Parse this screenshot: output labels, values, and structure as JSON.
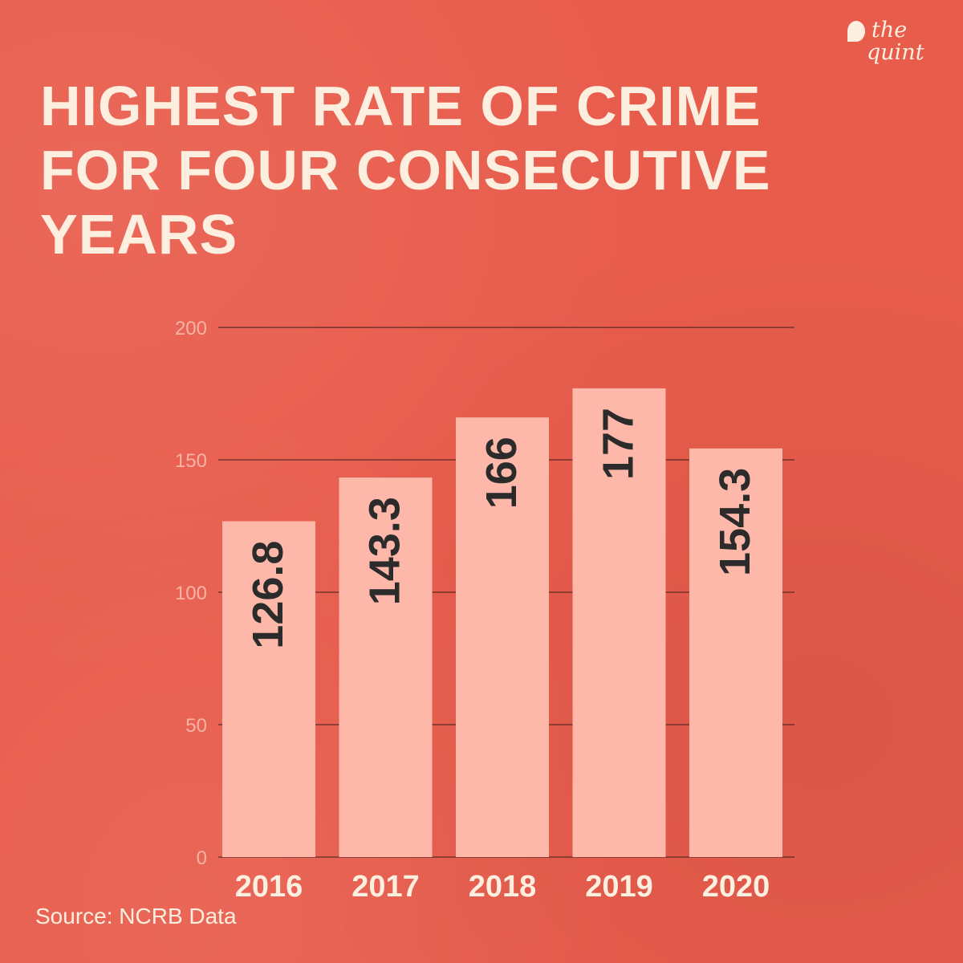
{
  "title_lines": [
    "HIGHEST RATE OF CRIME",
    "FOR FOUR CONSECUTIVE",
    "YEARS"
  ],
  "logo": {
    "line1": "the",
    "line2": "quint"
  },
  "source": "Source: NCRB Data",
  "colors": {
    "background": "#e85c4c",
    "bar": "#fdb8aa",
    "text": "#fcefdf",
    "bar_label": "#2b2b2b",
    "grid": "#3a1f1a",
    "tick": "#f7b3a6"
  },
  "chart_data": {
    "type": "bar",
    "categories": [
      "2016",
      "2017",
      "2018",
      "2019",
      "2020"
    ],
    "values": [
      126.8,
      143.3,
      166,
      177,
      154.3
    ],
    "data_labels": [
      "126.8",
      "143.3",
      "166",
      "177",
      "154.3"
    ],
    "title": "HIGHEST RATE OF CRIME FOR FOUR CONSECUTIVE YEARS",
    "xlabel": "",
    "ylabel": "",
    "ylim": [
      0,
      200
    ],
    "yticks": [
      0,
      50,
      100,
      150,
      200
    ],
    "grid": true,
    "legend": "none"
  }
}
